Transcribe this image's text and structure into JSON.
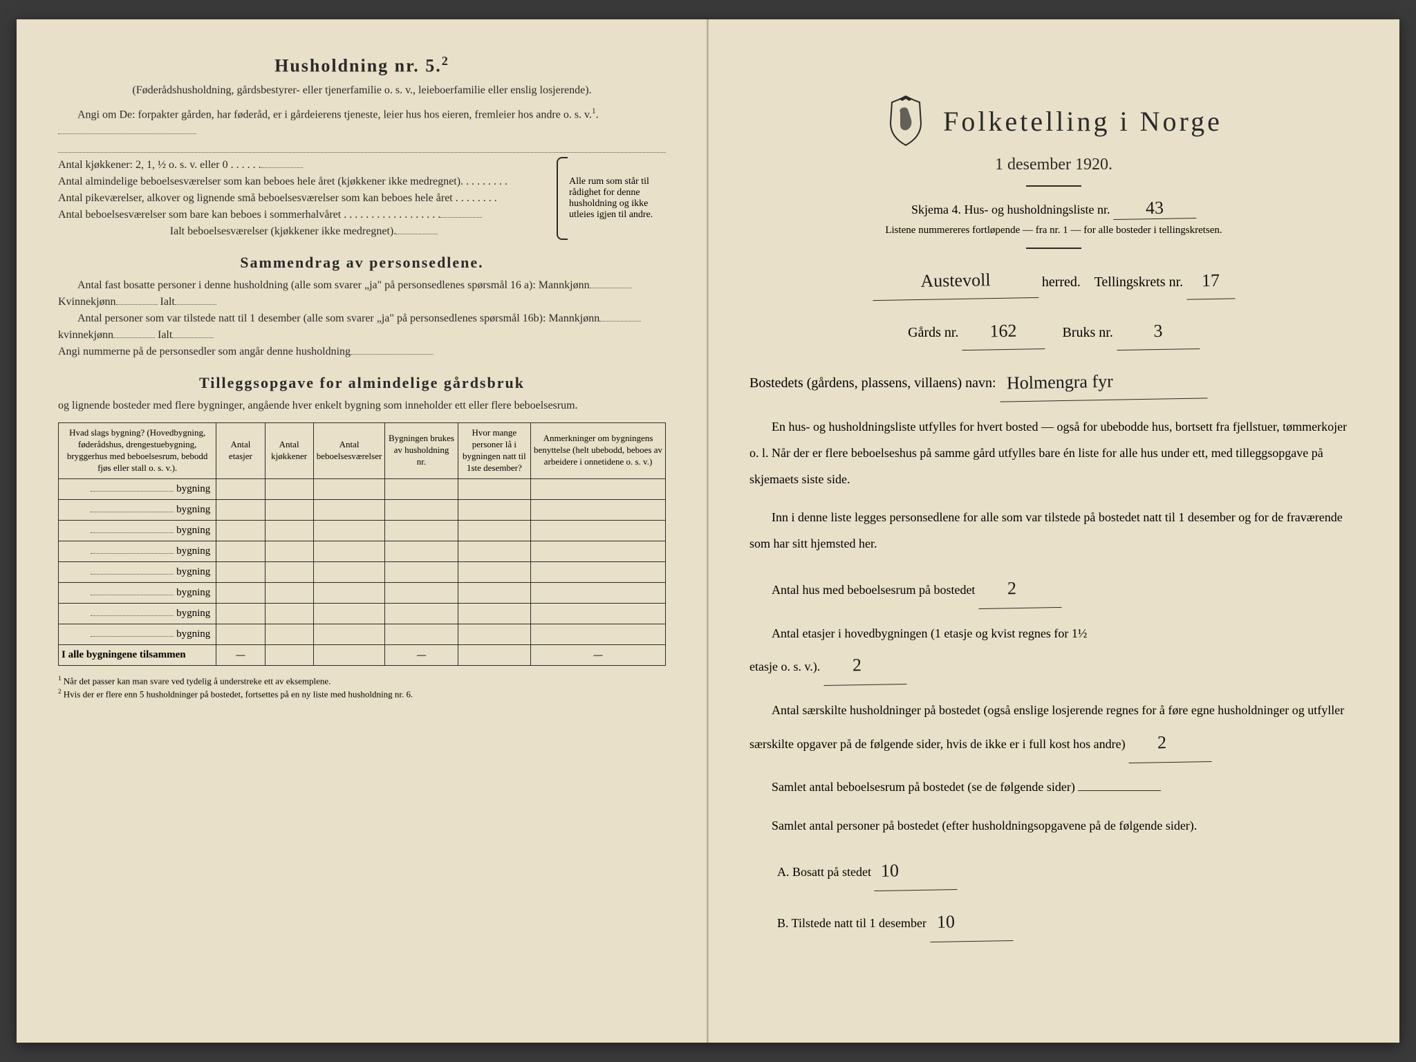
{
  "left": {
    "household_heading": "Husholdning nr. 5.",
    "household_sup": "2",
    "household_sub": "(Føderådshusholdning, gårdsbestyrer- eller tjenerfamilie o. s. v., leieboerfamilie eller enslig losjerende).",
    "angi_text": "Angi om De: forpakter gården, har føderåd, er i gårdeierens tjeneste, leier hus hos eieren, fremleier hos andre o. s. v.",
    "angi_sup": "1",
    "kjokkener": "Antal kjøkkener: 2, 1, ½ o. s. v. eller 0 . . . . . .",
    "rom1": "Antal almindelige beboelsesværelser som kan beboes hele året (kjøkkener ikke medregnet). . . . . . . . .",
    "rom2": "Antal pikeværelser, alkover og lignende små beboelsesværelser som kan beboes hele året . . . . . . . .",
    "rom3": "Antal beboelsesværelser som bare kan beboes i sommerhalvåret . . . . . . . . . . . . . . . . . .",
    "rom_total": "Ialt beboelsesværelser (kjøkkener ikke medregnet).",
    "brace_text": "Alle rum som står til rådighet for denne husholdning og ikke utleies igjen til andre.",
    "summary_heading": "Sammendrag av personsedlene.",
    "summary_p1a": "Antal fast bosatte personer i denne husholdning (alle som svarer „ja\" på personsedlenes spørsmål 16 a): Mannkjønn",
    "summary_p1b": "Kvinnekjønn",
    "summary_p1c": "Ialt",
    "summary_p2a": "Antal personer som var tilstede natt til 1 desember (alle som svarer „ja\" på personsedlenes spørsmål 16b): Mannkjønn",
    "summary_p2b": "kvinnekjønn",
    "summary_p2c": "Ialt",
    "summary_p3": "Angi nummerne på de personsedler som angår denne husholdning",
    "tillegg_heading": "Tilleggsopgave for almindelige gårdsbruk",
    "tillegg_sub": "og lignende bosteder med flere bygninger, angående hver enkelt bygning som inneholder ett eller flere beboelsesrum.",
    "table": {
      "col1": "Hvad slags bygning?\n(Hovedbygning, føderådshus, drengestuebygning, bryggerhus med beboelsesrum, bebodd fjøs eller stall o. s. v.).",
      "col2": "Antal etasjer",
      "col3": "Antal kjøkkener",
      "col4": "Antal beboelsesværelser",
      "col5": "Bygningen brukes av husholdning nr.",
      "col6": "Hvor mange personer lå i bygningen natt til 1ste desember?",
      "col7": "Anmerkninger om bygningens benyttelse (helt ubebodd, beboes av arbeidere i onnetidene o. s. v.)",
      "bygning": "bygning",
      "total": "I alle bygningene tilsammen"
    },
    "footnote1": "Når det passer kan man svare ved tydelig å understreke ett av eksemplene.",
    "footnote2": "Hvis der er flere enn 5 husholdninger på bostedet, fortsettes på en ny liste med husholdning nr. 6."
  },
  "right": {
    "title": "Folketelling i Norge",
    "date": "1 desember 1920.",
    "skjema": "Skjema 4.  Hus- og husholdningsliste nr.",
    "skjema_nr": "43",
    "listene": "Listene nummereres fortløpende — fra nr. 1 — for alle bosteder i tellingskretsen.",
    "herred": "herred.",
    "herred_val": "Austevoll",
    "tellingskrets": "Tellingskrets nr.",
    "tellingskrets_nr": "17",
    "gards": "Gårds nr.",
    "gards_nr": "162",
    "bruks": "Bruks nr.",
    "bruks_nr": "3",
    "bosted_label": "Bostedets (gårdens, plassens, villaens) navn:",
    "bosted_val": "Holmengra fyr",
    "para1": "En hus- og husholdningsliste utfylles for hvert bosted — også for ubebodde hus, bortsett fra fjellstuer, tømmerkojer o. l. Når der er flere beboelseshus på samme gård utfylles bare én liste for alle hus under ett, med tilleggsopgave på skjemaets siste side.",
    "para2": "Inn i denne liste legges personsedlene for alle som var tilstede på bostedet natt til 1 desember og for de fraværende som har sitt hjemsted her.",
    "hus_label": "Antal hus med beboelsesrum på bostedet",
    "hus_val": "2",
    "etasjer_label1": "Antal etasjer i hovedbygningen (1 etasje og kvist regnes for 1½",
    "etasjer_label2": "etasje o. s. v.).",
    "etasjer_val": "2",
    "sarskilte": "Antal særskilte husholdninger på bostedet (også enslige losjerende regnes for å føre egne husholdninger og utfyller særskilte opgaver på de følgende sider, hvis de ikke er i full kost hos andre)",
    "sarskilte_val": "2",
    "samlet_rum": "Samlet antal beboelsesrum på bostedet (se de følgende sider)",
    "samlet_pers": "Samlet antal personer på bostedet (efter husholdningsopgavene på de følgende sider).",
    "bosatt_label": "A.  Bosatt på stedet",
    "bosatt_val": "10",
    "tilstede_label": "B.  Tilstede natt til 1 desember",
    "tilstede_val": "10"
  }
}
